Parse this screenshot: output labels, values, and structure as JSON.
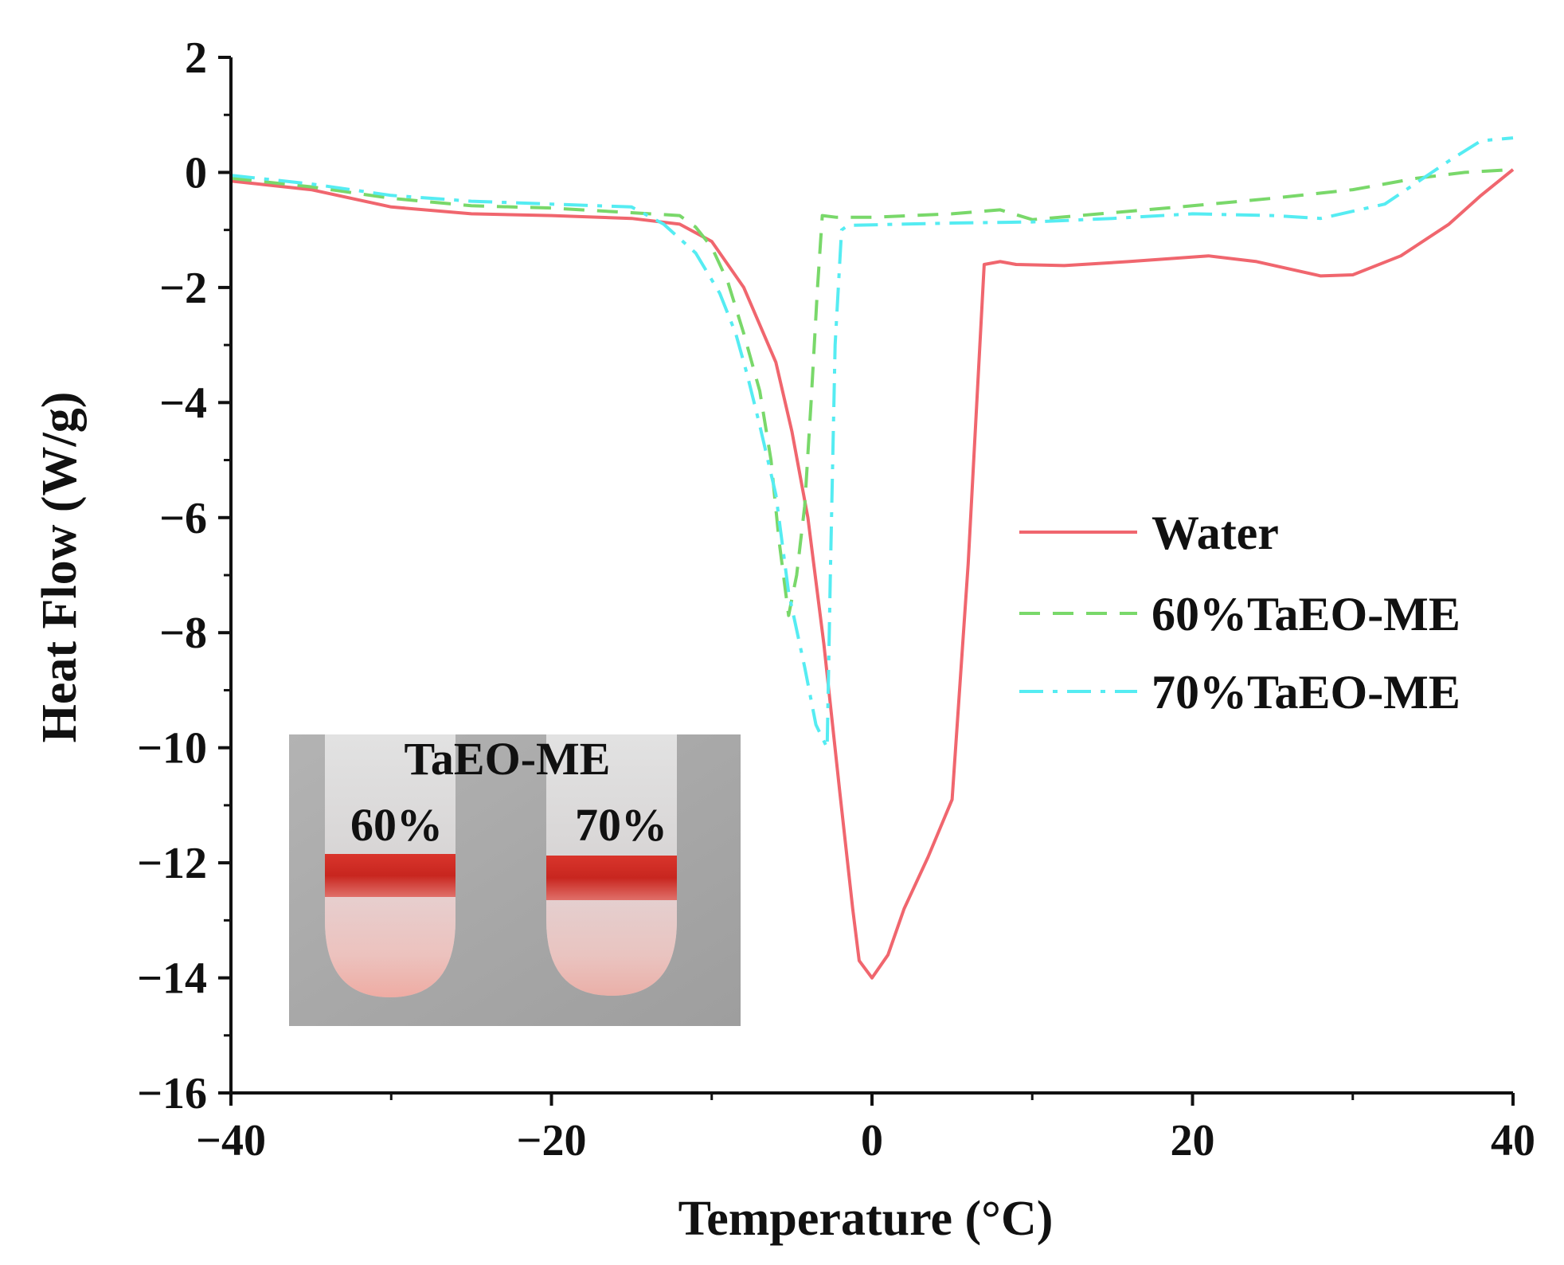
{
  "chart_data": {
    "type": "line",
    "title": "",
    "xlabel": "Temperature (°C)",
    "ylabel": "Heat Flow (W/g)",
    "xlim": [
      -40,
      40
    ],
    "ylim": [
      -16,
      2
    ],
    "xticks": [
      -40,
      -20,
      0,
      20,
      40
    ],
    "yticks": [
      2,
      0,
      -2,
      -4,
      -6,
      -8,
      -10,
      -12,
      -14,
      -16
    ],
    "xtick_labels": [
      "−40",
      "−20",
      "0",
      "20",
      "40"
    ],
    "ytick_labels": [
      "2",
      "0",
      "−2",
      "−4",
      "−6",
      "−8",
      "−10",
      "−12",
      "−14",
      "−16"
    ],
    "grid": false,
    "legend_position": "right",
    "series": [
      {
        "name": "Water",
        "color": "#f0666e",
        "style": "solid",
        "points": [
          [
            -40,
            -0.15
          ],
          [
            -35,
            -0.3
          ],
          [
            -30,
            -0.6
          ],
          [
            -25,
            -0.72
          ],
          [
            -20,
            -0.75
          ],
          [
            -15,
            -0.8
          ],
          [
            -12,
            -0.9
          ],
          [
            -10,
            -1.2
          ],
          [
            -8,
            -2.0
          ],
          [
            -6,
            -3.3
          ],
          [
            -5,
            -4.5
          ],
          [
            -4,
            -6.0
          ],
          [
            -3,
            -8.2
          ],
          [
            -2,
            -10.8
          ],
          [
            -1.2,
            -12.8
          ],
          [
            -0.8,
            -13.7
          ],
          [
            0,
            -14.0
          ],
          [
            1,
            -13.6
          ],
          [
            2,
            -12.8
          ],
          [
            3.5,
            -11.9
          ],
          [
            5,
            -10.9
          ],
          [
            6,
            -6.8
          ],
          [
            7,
            -1.6
          ],
          [
            8,
            -1.55
          ],
          [
            9,
            -1.6
          ],
          [
            12,
            -1.62
          ],
          [
            16,
            -1.55
          ],
          [
            21,
            -1.45
          ],
          [
            24,
            -1.55
          ],
          [
            28,
            -1.8
          ],
          [
            30,
            -1.78
          ],
          [
            33,
            -1.45
          ],
          [
            36,
            -0.9
          ],
          [
            38,
            -0.4
          ],
          [
            40,
            0.05
          ]
        ]
      },
      {
        "name": "60%TaEO-ME",
        "color": "#79d86a",
        "style": "dashed",
        "points": [
          [
            -40,
            -0.1
          ],
          [
            -35,
            -0.25
          ],
          [
            -30,
            -0.45
          ],
          [
            -25,
            -0.58
          ],
          [
            -20,
            -0.62
          ],
          [
            -15,
            -0.7
          ],
          [
            -12,
            -0.75
          ],
          [
            -11,
            -0.95
          ],
          [
            -10,
            -1.3
          ],
          [
            -9,
            -1.9
          ],
          [
            -8,
            -2.8
          ],
          [
            -7,
            -3.8
          ],
          [
            -6.3,
            -5.0
          ],
          [
            -5.8,
            -6.4
          ],
          [
            -5.2,
            -7.7
          ],
          [
            -4.7,
            -7.0
          ],
          [
            -4.2,
            -5.8
          ],
          [
            -3.8,
            -4.0
          ],
          [
            -3.4,
            -2.0
          ],
          [
            -3.1,
            -0.75
          ],
          [
            -2.2,
            -0.78
          ],
          [
            0,
            -0.78
          ],
          [
            5,
            -0.72
          ],
          [
            8,
            -0.65
          ],
          [
            10,
            -0.82
          ],
          [
            15,
            -0.7
          ],
          [
            20,
            -0.58
          ],
          [
            25,
            -0.45
          ],
          [
            30,
            -0.3
          ],
          [
            34,
            -0.1
          ],
          [
            37,
            0.0
          ],
          [
            40,
            0.05
          ]
        ]
      },
      {
        "name": "70%TaEO-ME",
        "color": "#55ecf2",
        "style": "dashdot",
        "points": [
          [
            -40,
            -0.05
          ],
          [
            -35,
            -0.2
          ],
          [
            -30,
            -0.4
          ],
          [
            -25,
            -0.5
          ],
          [
            -20,
            -0.55
          ],
          [
            -15,
            -0.6
          ],
          [
            -13,
            -0.9
          ],
          [
            -11,
            -1.4
          ],
          [
            -9.5,
            -2.1
          ],
          [
            -8.5,
            -2.8
          ],
          [
            -7.8,
            -3.5
          ],
          [
            -7,
            -4.4
          ],
          [
            -6,
            -5.6
          ],
          [
            -5.2,
            -7.3
          ],
          [
            -4.2,
            -8.6
          ],
          [
            -3.5,
            -9.6
          ],
          [
            -2.8,
            -10.0
          ],
          [
            -2.6,
            -7.0
          ],
          [
            -2.3,
            -3.0
          ],
          [
            -1.9,
            -1.0
          ],
          [
            -1.5,
            -0.92
          ],
          [
            5,
            -0.88
          ],
          [
            10,
            -0.86
          ],
          [
            15,
            -0.8
          ],
          [
            20,
            -0.72
          ],
          [
            25,
            -0.75
          ],
          [
            28,
            -0.8
          ],
          [
            32,
            -0.55
          ],
          [
            36,
            0.2
          ],
          [
            38,
            0.55
          ],
          [
            40,
            0.6
          ]
        ]
      }
    ],
    "inset": {
      "title": "TaEO-ME",
      "left_label": "60%",
      "right_label": "70%"
    }
  }
}
